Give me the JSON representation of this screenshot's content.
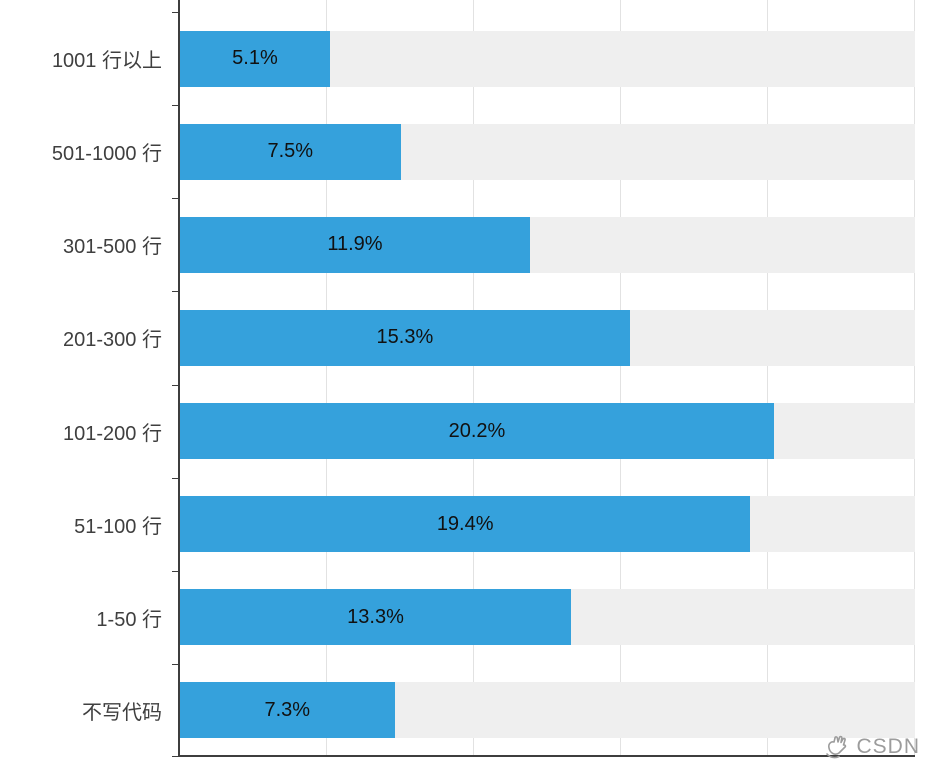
{
  "chart_data": {
    "type": "bar",
    "orientation": "horizontal",
    "title": "",
    "xlabel": "",
    "ylabel": "",
    "xlim": [
      0,
      25
    ],
    "gridline_interval": 5,
    "grid": true,
    "legend": "none",
    "categories": [
      "1001 行以上",
      "501-1000 行",
      "301-500 行",
      "201-300 行",
      "101-200 行",
      "51-100 行",
      "1-50 行",
      "不写代码"
    ],
    "values": [
      5.1,
      7.5,
      11.9,
      15.3,
      20.2,
      19.4,
      13.3,
      7.3
    ],
    "value_labels": [
      "5.1%",
      "7.5%",
      "11.9%",
      "15.3%",
      "20.2%",
      "19.4%",
      "13.3%",
      "7.3%"
    ],
    "bar_color": "#35a1dc",
    "track_color": "#efefef",
    "gridline_color": "#e2e2e2",
    "axis_color": "#3d3d3d",
    "label_color": "#3f3f3f",
    "value_label_color": "#111111"
  },
  "watermark": {
    "text": "CSDN",
    "color": "#9c9c9c"
  }
}
